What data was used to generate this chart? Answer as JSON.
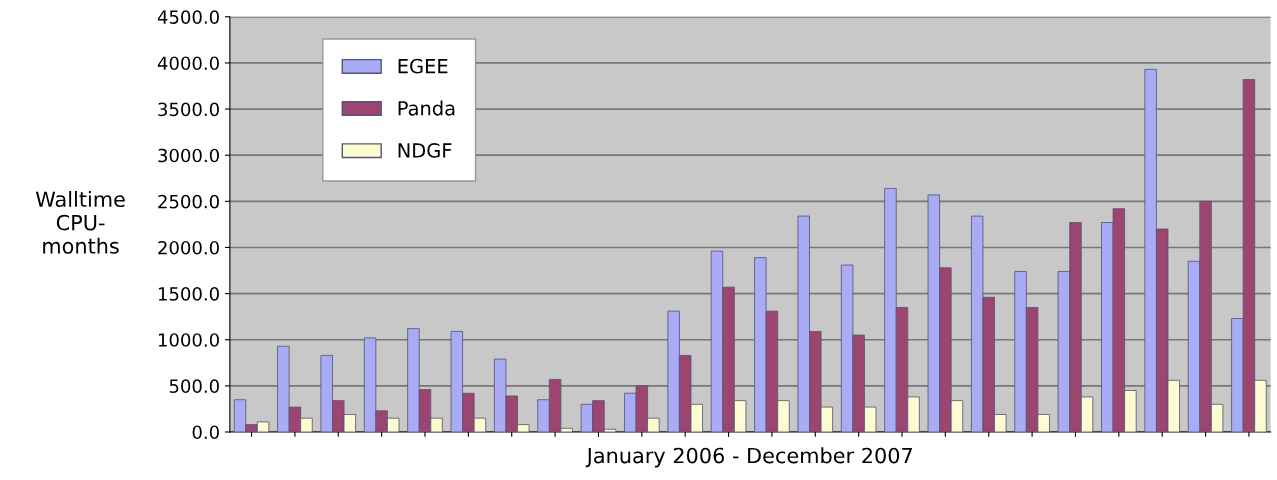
{
  "chart_data": {
    "type": "bar",
    "xlabel": "January 2006 - December 2007",
    "ylabel": "Walltime\nCPU-\nmonths",
    "categories": [
      null,
      null,
      null,
      null,
      null,
      null,
      null,
      null,
      null,
      null,
      null,
      null,
      null,
      null,
      null,
      null,
      null,
      null,
      null,
      null,
      null,
      null,
      null,
      null
    ],
    "series": [
      {
        "name": "EGEE",
        "color": "#a9acf5",
        "values": [
          350,
          930,
          830,
          1020,
          1120,
          1090,
          790,
          350,
          300,
          420,
          1310,
          1960,
          1890,
          2340,
          1810,
          2640,
          2570,
          2340,
          1740,
          1740,
          2270,
          3930,
          1850,
          1230
        ]
      },
      {
        "name": "Panda",
        "color": "#9b4570",
        "values": [
          80,
          270,
          340,
          230,
          460,
          420,
          390,
          570,
          340,
          500,
          830,
          1570,
          1310,
          1090,
          1050,
          1350,
          1780,
          1460,
          1350,
          2270,
          2420,
          2200,
          2500,
          3820
        ]
      },
      {
        "name": "NDGF",
        "color": "#fdfbd0",
        "values": [
          110,
          150,
          190,
          150,
          150,
          150,
          80,
          40,
          30,
          150,
          300,
          340,
          340,
          270,
          270,
          380,
          340,
          190,
          190,
          380,
          450,
          560,
          300,
          560
        ]
      }
    ],
    "ylim": [
      0,
      4500
    ],
    "yticks": [
      {
        "value": 0,
        "label": "0.0"
      },
      {
        "value": 500,
        "label": "500.0"
      },
      {
        "value": 1000,
        "label": "1000.0"
      },
      {
        "value": 1500,
        "label": "1500.0"
      },
      {
        "value": 2000,
        "label": "2000.0"
      },
      {
        "value": 2500,
        "label": "2500.0"
      },
      {
        "value": 3000,
        "label": "3000.0"
      },
      {
        "value": 3500,
        "label": "3500.0"
      },
      {
        "value": 4000,
        "label": "4000.0"
      },
      {
        "value": 4500,
        "label": "4500.0"
      }
    ],
    "grid": "y",
    "legend": "top left"
  }
}
